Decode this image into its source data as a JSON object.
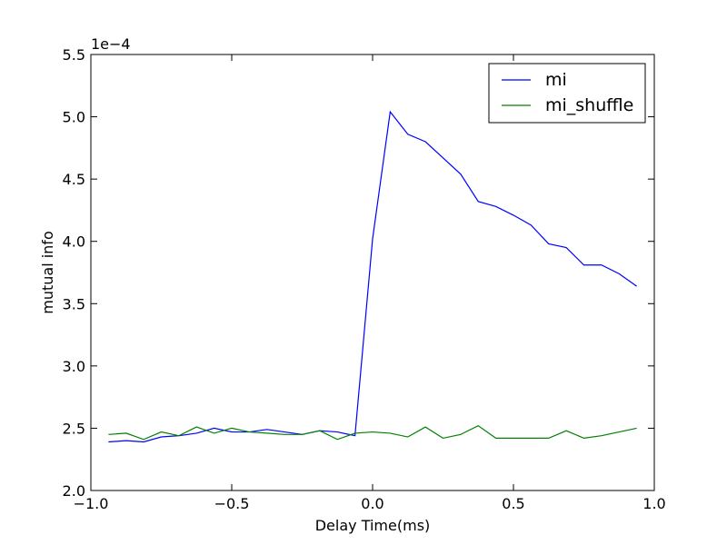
{
  "chart_data": {
    "type": "line",
    "xlabel": "Delay Time(ms)",
    "ylabel": "mutual info",
    "y_scale_label": "1e−4",
    "xlim": [
      -1.0,
      1.0
    ],
    "ylim": [
      2.0,
      5.5
    ],
    "x_ticks": [
      -1.0,
      -0.5,
      0.0,
      0.5,
      1.0
    ],
    "x_tick_labels": [
      "−1.0",
      "−0.5",
      "0.0",
      "0.5",
      "1.0"
    ],
    "y_ticks": [
      2.0,
      2.5,
      3.0,
      3.5,
      4.0,
      4.5,
      5.0,
      5.5
    ],
    "y_tick_labels": [
      "2.0",
      "2.5",
      "3.0",
      "3.5",
      "4.0",
      "4.5",
      "5.0",
      "5.5"
    ],
    "grid": false,
    "legend_position": "top-right",
    "x": [
      -0.9375,
      -0.875,
      -0.8125,
      -0.75,
      -0.6875,
      -0.625,
      -0.5625,
      -0.5,
      -0.4375,
      -0.375,
      -0.3125,
      -0.25,
      -0.1875,
      -0.125,
      -0.0625,
      0.0,
      0.0625,
      0.125,
      0.1875,
      0.25,
      0.3125,
      0.375,
      0.4375,
      0.5,
      0.5625,
      0.625,
      0.6875,
      0.75,
      0.8125,
      0.875,
      0.9375
    ],
    "series": [
      {
        "name": "mi",
        "color": "#0000ff",
        "values": [
          2.39,
          2.4,
          2.39,
          2.43,
          2.44,
          2.46,
          2.5,
          2.47,
          2.47,
          2.49,
          2.47,
          2.45,
          2.48,
          2.47,
          2.44,
          4.02,
          5.04,
          4.86,
          4.8,
          4.67,
          4.54,
          4.32,
          4.28,
          4.21,
          4.13,
          3.98,
          3.95,
          3.81,
          3.81,
          3.74,
          3.64
        ]
      },
      {
        "name": "mi_shuffle",
        "color": "#008000",
        "values": [
          2.45,
          2.46,
          2.41,
          2.47,
          2.44,
          2.51,
          2.46,
          2.5,
          2.47,
          2.46,
          2.45,
          2.45,
          2.48,
          2.41,
          2.46,
          2.47,
          2.46,
          2.43,
          2.51,
          2.42,
          2.45,
          2.52,
          2.42,
          2.42,
          2.42,
          2.42,
          2.48,
          2.42,
          2.44,
          2.47,
          2.5
        ]
      }
    ]
  }
}
